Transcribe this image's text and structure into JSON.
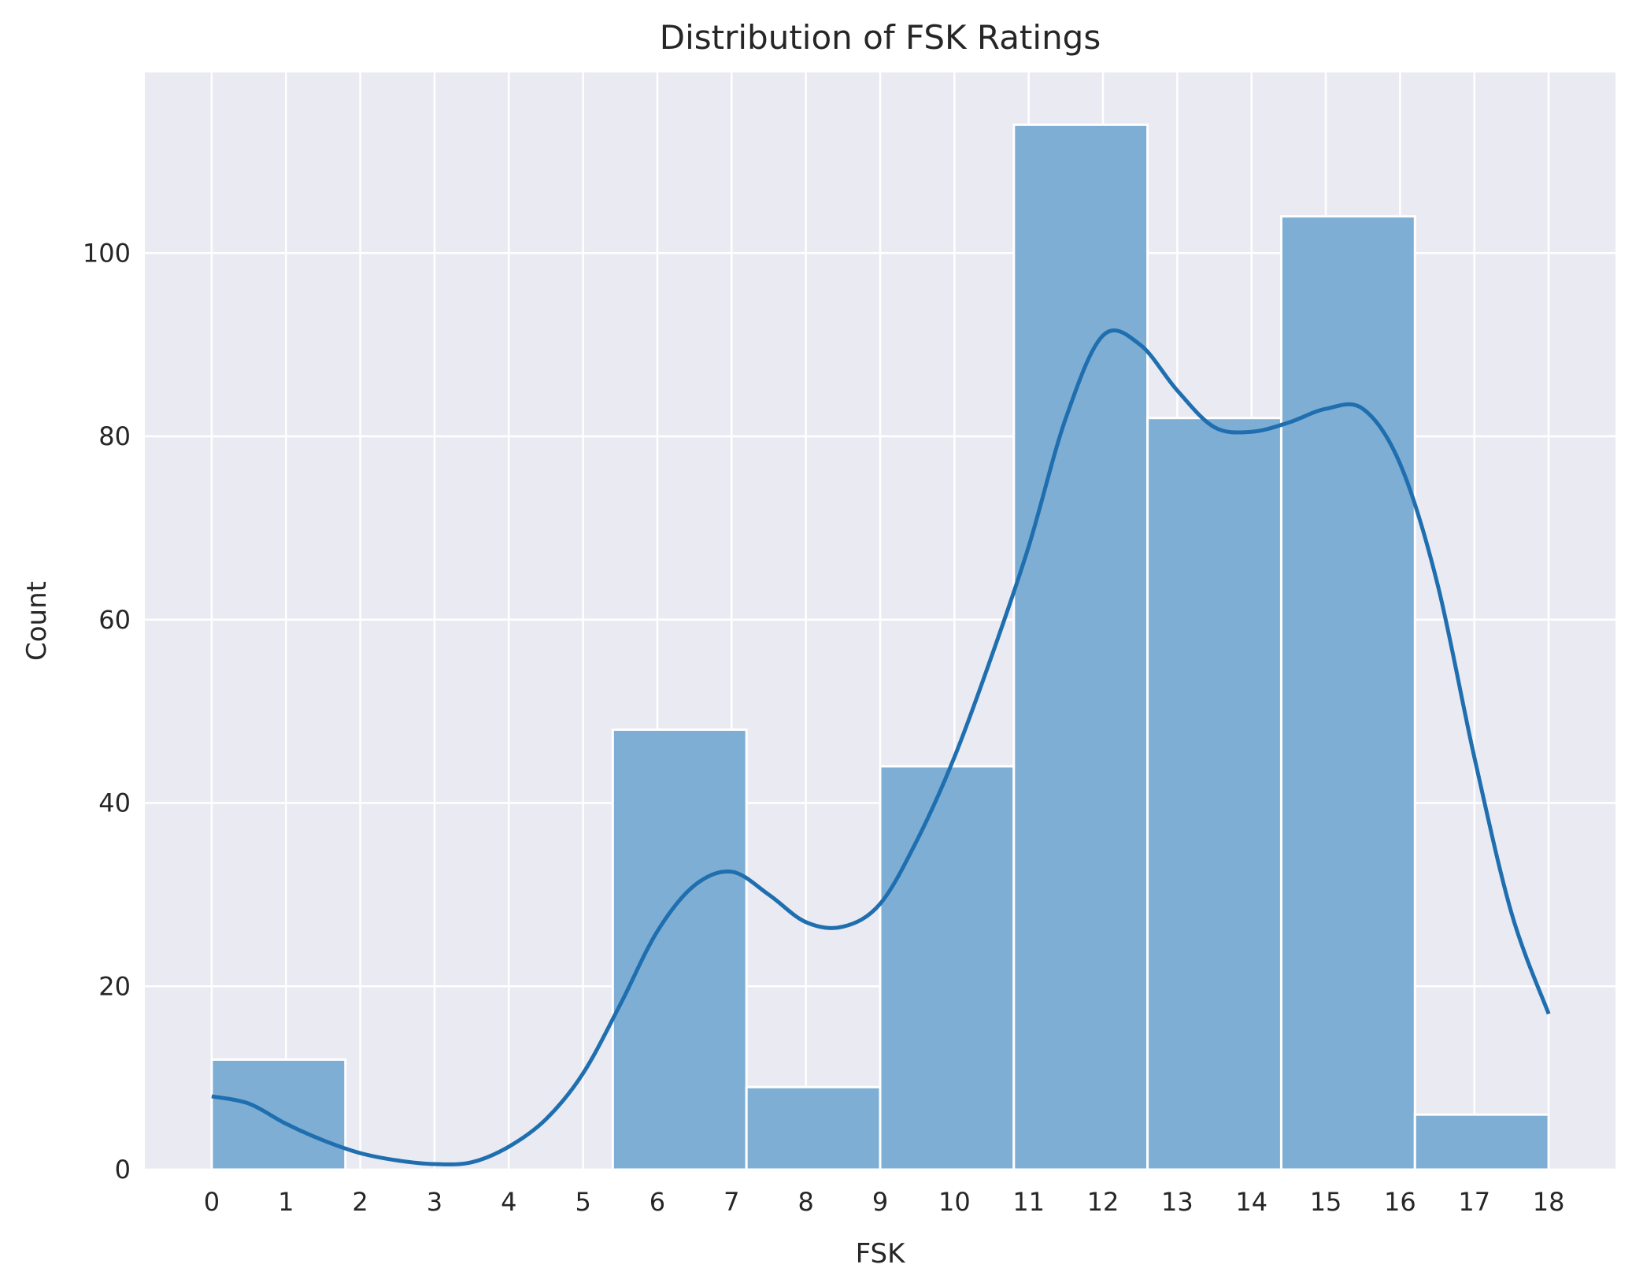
{
  "chart_data": {
    "type": "bar",
    "title": "Distribution of FSK Ratings",
    "xlabel": "FSK",
    "ylabel": "Count",
    "xlim": [
      -0.9,
      18.9
    ],
    "ylim": [
      0,
      119.7
    ],
    "x_ticks": [
      0,
      1,
      2,
      3,
      4,
      5,
      6,
      7,
      8,
      9,
      10,
      11,
      12,
      13,
      14,
      15,
      16,
      17,
      18
    ],
    "y_ticks": [
      0,
      20,
      40,
      60,
      80,
      100
    ],
    "bins": [
      {
        "start": 0.0,
        "end": 1.8,
        "count": 12
      },
      {
        "start": 1.8,
        "end": 3.6,
        "count": 0
      },
      {
        "start": 3.6,
        "end": 5.4,
        "count": 0
      },
      {
        "start": 5.4,
        "end": 7.2,
        "count": 48
      },
      {
        "start": 7.2,
        "end": 9.0,
        "count": 9
      },
      {
        "start": 9.0,
        "end": 10.8,
        "count": 44
      },
      {
        "start": 10.8,
        "end": 12.6,
        "count": 114
      },
      {
        "start": 12.6,
        "end": 14.4,
        "count": 82
      },
      {
        "start": 14.4,
        "end": 16.2,
        "count": 104
      },
      {
        "start": 16.2,
        "end": 18.0,
        "count": 6
      }
    ],
    "kde": {
      "x": [
        0,
        0.5,
        1,
        1.5,
        2,
        2.5,
        3,
        3.5,
        4,
        4.5,
        5,
        5.5,
        6,
        6.5,
        7,
        7.5,
        8,
        8.5,
        9,
        9.5,
        10,
        10.5,
        11,
        11.5,
        12,
        12.5,
        13,
        13.5,
        14,
        14.5,
        15,
        15.5,
        16,
        16.5,
        17,
        17.5,
        18
      ],
      "y": [
        8,
        7.2,
        5,
        3.2,
        1.8,
        1.0,
        0.6,
        0.8,
        2.5,
        5.5,
        10.5,
        18,
        26,
        31,
        32.5,
        30,
        27,
        26.5,
        29,
        36,
        45,
        56,
        68,
        82,
        91,
        90,
        85,
        81,
        80.5,
        81.5,
        83,
        83,
        77,
        64,
        45,
        28,
        17
      ]
    },
    "colors": {
      "bar": "#7eaed3",
      "bar_edge": "#ffffff",
      "kde": "#1f6fb0",
      "background": "#eaeaf2",
      "grid": "#ffffff"
    },
    "grid": true,
    "legend": "none"
  }
}
